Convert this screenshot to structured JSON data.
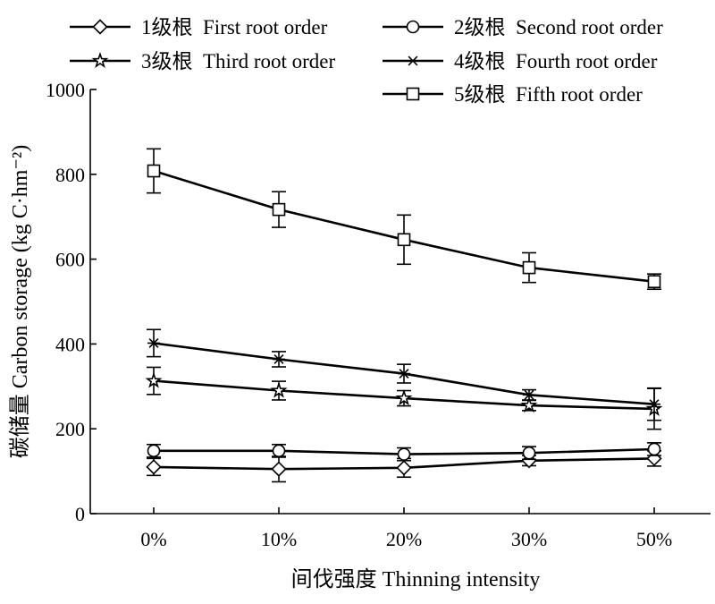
{
  "chart_data": {
    "type": "line",
    "xlabel": "间伐强度 Thinning intensity",
    "ylabel": "碳储量  Carbon storage (kg C·hm⁻²)",
    "categories": [
      "0%",
      "10%",
      "20%",
      "30%",
      "50%"
    ],
    "ylim": [
      0,
      1000
    ],
    "yticks": [
      0,
      200,
      400,
      600,
      800,
      1000
    ],
    "grid": false,
    "legend_position": "top",
    "series": [
      {
        "name": "1级根  First root order",
        "marker": "diamond",
        "values": [
          110,
          105,
          108,
          125,
          130
        ],
        "errors": [
          20,
          30,
          22,
          12,
          18
        ]
      },
      {
        "name": "2级根  Second root order",
        "marker": "circle",
        "values": [
          148,
          148,
          140,
          143,
          152
        ],
        "errors": [
          15,
          15,
          15,
          15,
          15
        ]
      },
      {
        "name": "3级根  Third root order",
        "marker": "star",
        "values": [
          313,
          290,
          272,
          255,
          247
        ],
        "errors": [
          32,
          22,
          18,
          12,
          48
        ]
      },
      {
        "name": "4级根  Fourth root order",
        "marker": "asterisk",
        "values": [
          402,
          364,
          330,
          280,
          258
        ],
        "errors": [
          32,
          18,
          22,
          12,
          38
        ]
      },
      {
        "name": "5级根  Fifth root order",
        "marker": "square",
        "values": [
          808,
          717,
          646,
          580,
          547
        ],
        "errors": [
          52,
          42,
          58,
          35,
          18
        ]
      }
    ]
  }
}
